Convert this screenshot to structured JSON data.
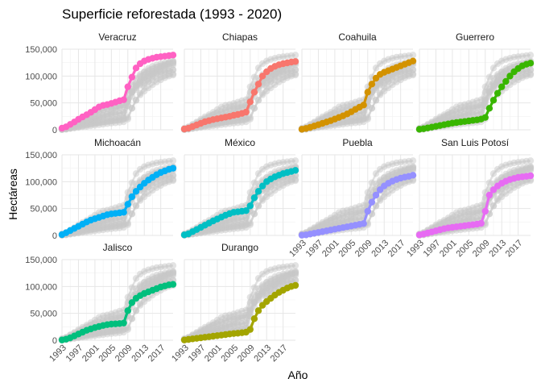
{
  "chart_data": {
    "type": "line",
    "title": "Superficie reforestada (1993 - 2020)",
    "xlabel": "Año",
    "ylabel": "Hectáreas",
    "xlim": [
      1993,
      2020
    ],
    "ylim": [
      0,
      150000
    ],
    "x_ticks": [
      1993,
      1997,
      2001,
      2005,
      2009,
      2013,
      2017
    ],
    "x_tick_labels": [
      "1993",
      "1997",
      "2001",
      "2005",
      "2009",
      "2013",
      "2017"
    ],
    "y_ticks": [
      0,
      50000,
      100000,
      150000
    ],
    "y_tick_labels": [
      "0",
      "50,000",
      "100,000",
      "150,000"
    ],
    "grid": true,
    "x": [
      1993,
      1994,
      1995,
      1996,
      1997,
      1998,
      1999,
      2000,
      2001,
      2002,
      2003,
      2004,
      2005,
      2006,
      2007,
      2008,
      2009,
      2010,
      2011,
      2012,
      2013,
      2014,
      2015,
      2016,
      2017,
      2018,
      2019,
      2020
    ],
    "series": [
      {
        "name": "Veracruz",
        "color": "#ff61c3",
        "values": [
          3000,
          5500,
          10000,
          14500,
          19500,
          24000,
          28000,
          32500,
          37500,
          42500,
          45500,
          47000,
          49000,
          51500,
          54000,
          56000,
          80000,
          98000,
          115000,
          123000,
          128000,
          131000,
          133000,
          135000,
          136000,
          137000,
          138000,
          139000
        ]
      },
      {
        "name": "Chiapas",
        "color": "#f8766d",
        "values": [
          1500,
          3000,
          6000,
          9000,
          12000,
          15000,
          17000,
          19000,
          20500,
          22000,
          23500,
          25000,
          27000,
          28500,
          30500,
          33000,
          52000,
          70000,
          85000,
          100000,
          108000,
          114000,
          118000,
          121000,
          123000,
          124500,
          126000,
          127000
        ]
      },
      {
        "name": "Coahuila",
        "color": "#d39200",
        "values": [
          1000,
          2500,
          4500,
          7000,
          9500,
          12000,
          14500,
          17000,
          20000,
          23000,
          26000,
          29500,
          33500,
          38000,
          42000,
          46000,
          70000,
          85000,
          96000,
          103000,
          107000,
          110000,
          113000,
          116000,
          119000,
          122000,
          125000,
          128000
        ]
      },
      {
        "name": "Guerrero",
        "color": "#39b600",
        "values": [
          1000,
          2000,
          3500,
          5000,
          6500,
          8000,
          9500,
          11000,
          12500,
          13500,
          14500,
          15500,
          16500,
          17500,
          18500,
          20000,
          23000,
          40000,
          55000,
          68000,
          80000,
          90000,
          100000,
          108000,
          114000,
          119000,
          122000,
          124000
        ]
      },
      {
        "name": "Michoacán",
        "color": "#00b0f6",
        "values": [
          1500,
          5000,
          9000,
          13000,
          17000,
          21000,
          25000,
          28500,
          31000,
          33500,
          36000,
          38500,
          40000,
          41000,
          42000,
          43000,
          58000,
          72000,
          82000,
          90000,
          97000,
          103000,
          108000,
          113000,
          117000,
          120000,
          123000,
          125000
        ]
      },
      {
        "name": "México",
        "color": "#00bfc4",
        "values": [
          1000,
          3000,
          7000,
          11000,
          15000,
          19000,
          23000,
          27000,
          30500,
          34000,
          37500,
          40500,
          43000,
          44000,
          45000,
          46000,
          55000,
          70000,
          82000,
          92000,
          100000,
          105000,
          109000,
          112000,
          115000,
          117000,
          119000,
          121000
        ]
      },
      {
        "name": "Puebla",
        "color": "#9590ff",
        "values": [
          500,
          1000,
          2500,
          4000,
          5500,
          7000,
          8500,
          10000,
          11500,
          13000,
          14500,
          16000,
          17500,
          19000,
          20500,
          22000,
          45000,
          62000,
          75000,
          85000,
          92000,
          97000,
          101000,
          104000,
          106500,
          108500,
          110000,
          112000
        ]
      },
      {
        "name": "San Luis Potosí",
        "color": "#e76bf3",
        "values": [
          1000,
          2500,
          4500,
          6500,
          8500,
          10500,
          12500,
          14000,
          15000,
          16000,
          17000,
          18000,
          19000,
          20000,
          21000,
          22500,
          45000,
          75000,
          85000,
          92000,
          97000,
          101000,
          104000,
          106000,
          108000,
          109000,
          110000,
          111000
        ]
      },
      {
        "name": "Jalisco",
        "color": "#00bf7d",
        "values": [
          500,
          2000,
          4500,
          8000,
          11500,
          15000,
          18500,
          21000,
          23500,
          25500,
          27500,
          29000,
          30000,
          30500,
          31000,
          32000,
          55000,
          70000,
          78000,
          83000,
          87000,
          90000,
          93000,
          96000,
          99000,
          101000,
          103000,
          104000
        ]
      },
      {
        "name": "Durango",
        "color": "#a3a500",
        "values": [
          500,
          1500,
          2500,
          3500,
          4500,
          5500,
          6500,
          7500,
          8500,
          9500,
          10500,
          11500,
          12500,
          13000,
          14000,
          15000,
          20000,
          40000,
          55000,
          65000,
          72000,
          78000,
          84000,
          89000,
          93000,
          97000,
          100000,
          102000
        ]
      }
    ]
  }
}
